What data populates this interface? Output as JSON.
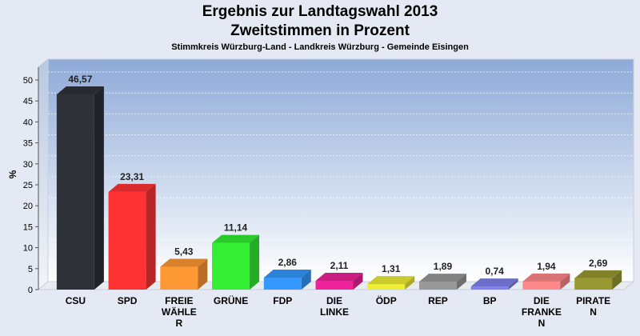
{
  "chart_data": {
    "type": "bar",
    "title": "Ergebnis zur Landtagswahl 2013",
    "subtitle": "Zweitstimmen in Prozent",
    "subtitle2": "Stimmkreis Würzburg-Land - Landkreis Würzburg - Gemeinde Eisingen",
    "ylabel": "%",
    "ylim": [
      0,
      50
    ],
    "yticks": [
      0,
      5,
      10,
      15,
      20,
      25,
      30,
      35,
      40,
      45,
      50
    ],
    "grid": true,
    "categories": [
      [
        "CSU"
      ],
      [
        "SPD"
      ],
      [
        "FREIE",
        "WÄHLE",
        "R"
      ],
      [
        "GRÜNE"
      ],
      [
        "FDP"
      ],
      [
        "DIE",
        "LINKE"
      ],
      [
        "ÖDP"
      ],
      [
        "REP"
      ],
      [
        "BP"
      ],
      [
        "DIE",
        "FRANKE",
        "N"
      ],
      [
        "PIRATE",
        "N"
      ]
    ],
    "values": [
      46.57,
      23.31,
      5.43,
      11.14,
      2.86,
      2.11,
      1.31,
      1.89,
      0.74,
      1.94,
      2.69
    ],
    "value_labels": [
      "46,57",
      "23,31",
      "5,43",
      "11,14",
      "2,86",
      "2,11",
      "1,31",
      "1,89",
      "0,74",
      "1,94",
      "2,69"
    ],
    "colors": [
      "#2e3138",
      "#ff3333",
      "#ff9933",
      "#33ee33",
      "#3399ff",
      "#ee2299",
      "#eeee33",
      "#999999",
      "#8080ee",
      "#ff8888",
      "#999933"
    ]
  }
}
